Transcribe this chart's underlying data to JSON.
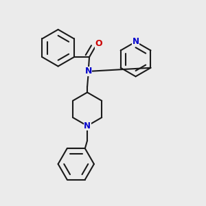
{
  "bg_color": "#ebebeb",
  "bond_color": "#1a1a1a",
  "N_color": "#0000cc",
  "O_color": "#cc0000",
  "lw": 1.5,
  "fig_size": [
    3.0,
    3.0
  ],
  "dpi": 100,
  "xlim": [
    0,
    10
  ],
  "ylim": [
    0,
    10
  ]
}
